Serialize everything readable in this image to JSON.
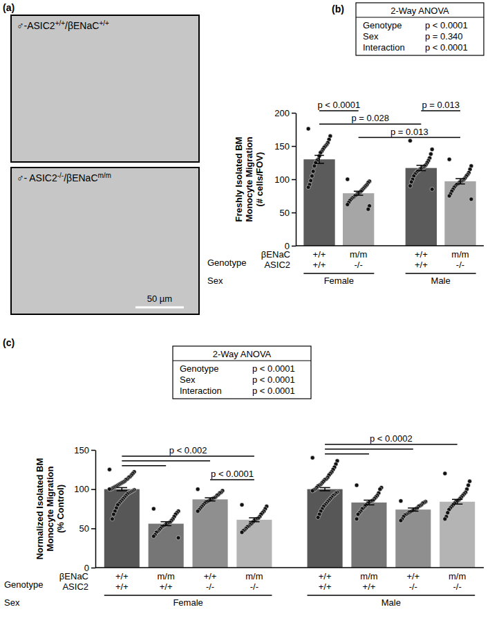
{
  "panel_a": {
    "letter": "(a)",
    "images": [
      {
        "label_parts": [
          {
            "text": "♂-ASIC2"
          },
          {
            "text": "+/+",
            "sup": true
          },
          {
            "text": "/βENaC"
          },
          {
            "text": "+/+",
            "sup": true
          }
        ]
      },
      {
        "label_parts": [
          {
            "text": "♂- ASIC2"
          },
          {
            "text": "-/-",
            "sup": true
          },
          {
            "text": "/βENaC"
          },
          {
            "text": "m/m",
            "sup": true
          }
        ],
        "scale_bar": "50 µm"
      }
    ]
  },
  "chart_data": [
    {
      "letter": "(b)",
      "type": "bar",
      "ylabel": [
        "Freshly Isolated BM",
        "Monocyte Migration",
        "(# cells/FOV)"
      ],
      "categories": [
        "+/+",
        "m/m",
        "+/+",
        "m/m"
      ],
      "categories_2": [
        "+/+",
        "-/-",
        "+/+",
        "-/-"
      ],
      "category_rows": [
        "βENaC",
        "ASIC2"
      ],
      "category_title": "Genotype",
      "groups": [
        "Female",
        "Male"
      ],
      "group_title": "Sex",
      "values": [
        130,
        79,
        117,
        97
      ],
      "errors": [
        6,
        3,
        4,
        4
      ],
      "points": [
        [
          176,
          165,
          160,
          155,
          152,
          150,
          148,
          145,
          142,
          140,
          135,
          130,
          128,
          125,
          120,
          112,
          105,
          98,
          92,
          88
        ],
        [
          100,
          97,
          95,
          92,
          90,
          88,
          86,
          84,
          82,
          80,
          79,
          78,
          76,
          75,
          73,
          72,
          70,
          68,
          65,
          62,
          60,
          55
        ],
        [
          158,
          145,
          138,
          132,
          128,
          125,
          122,
          120,
          118,
          117,
          116,
          115,
          113,
          112,
          110,
          108,
          105,
          100,
          96,
          90,
          85
        ],
        [
          130,
          120,
          115,
          110,
          107,
          105,
          102,
          100,
          98,
          97,
          96,
          95,
          93,
          92,
          90,
          88,
          85,
          82,
          78,
          75,
          70
        ]
      ],
      "colors": [
        "#5b5b5b",
        "#a6a6a6",
        "#5b5b5b",
        "#a6a6a6"
      ],
      "ylim": [
        0,
        200
      ],
      "yticks": [
        0,
        50,
        100,
        150,
        200
      ],
      "stats": {
        "title": "2-Way ANOVA",
        "rows": [
          [
            "Genotype",
            "p < 0.0001"
          ],
          [
            "Sex",
            "p = 0.340"
          ],
          [
            "Interaction",
            "p < 0.0001"
          ]
        ]
      },
      "comparisons": [
        {
          "from": 0,
          "to": 1,
          "y": 203,
          "label": "p < 0.0001"
        },
        {
          "from": 2,
          "to": 3,
          "y": 203,
          "label": "p = 0.013"
        },
        {
          "from": 0,
          "to": 2,
          "y": 183,
          "label": "p = 0.028"
        },
        {
          "from": 1,
          "to": 3,
          "y": 163,
          "label": "p = 0.013"
        }
      ]
    },
    {
      "letter": "(c)",
      "type": "bar",
      "ylabel": [
        "Normalized Isolated BM",
        "Monocyte Migration",
        "(% Control)"
      ],
      "categories": [
        "+/+",
        "m/m",
        "+/+",
        "m/m",
        "+/+",
        "m/m",
        "+/+",
        "m/m"
      ],
      "categories_2": [
        "+/+",
        "+/+",
        "-/-",
        "-/-",
        "+/+",
        "+/+",
        "-/-",
        "-/-"
      ],
      "category_rows": [
        "βENaC",
        "ASIC2"
      ],
      "category_title": "Genotype",
      "groups": [
        "Female",
        "Male"
      ],
      "group_title": "Sex",
      "values": [
        100,
        56,
        87,
        61,
        100,
        83,
        74,
        84
      ],
      "errors": [
        2,
        2.5,
        2,
        2.5,
        2,
        3,
        2,
        3
      ],
      "points": [
        [
          125,
          122,
          120,
          118,
          116,
          115,
          113,
          112,
          110,
          109,
          108,
          107,
          106,
          105,
          104,
          103,
          102,
          101,
          100,
          100,
          99,
          98,
          97,
          96,
          95,
          94,
          92,
          90,
          88,
          86,
          84,
          82,
          80,
          76,
          72,
          68,
          62
        ],
        [
          75,
          72,
          70,
          68,
          65,
          62,
          60,
          58,
          57,
          56,
          55,
          54,
          53,
          52,
          50,
          48,
          46,
          45,
          42,
          40,
          38
        ],
        [
          100,
          98,
          96,
          95,
          93,
          92,
          90,
          89,
          88,
          87,
          86,
          85,
          84,
          83,
          82,
          80,
          78,
          76,
          74,
          72
        ],
        [
          80,
          78,
          75,
          72,
          70,
          68,
          65,
          63,
          62,
          61,
          60,
          58,
          56,
          55,
          53,
          52,
          50,
          48,
          47,
          45
        ],
        [
          140,
          136,
          132,
          128,
          125,
          122,
          120,
          118,
          115,
          113,
          112,
          110,
          108,
          106,
          105,
          104,
          102,
          100,
          99,
          98,
          96,
          95,
          93,
          92,
          90,
          88,
          86,
          84,
          82,
          80,
          78,
          75,
          72,
          68,
          64
        ],
        [
          105,
          102,
          100,
          95,
          92,
          90,
          88,
          86,
          85,
          84,
          83,
          82,
          80,
          78,
          76,
          75,
          72,
          70,
          68,
          62
        ],
        [
          85,
          84,
          83,
          82,
          80,
          79,
          78,
          76,
          75,
          74,
          73,
          72,
          71,
          70,
          69,
          68,
          67,
          65,
          62,
          60
        ],
        [
          120,
          110,
          105,
          100,
          96,
          94,
          92,
          90,
          88,
          86,
          85,
          84,
          82,
          80,
          78,
          76,
          74,
          70,
          65,
          62
        ]
      ],
      "colors": [
        "#575757",
        "#767676",
        "#8f8f8f",
        "#b4b4b4",
        "#575757",
        "#767676",
        "#8f8f8f",
        "#b4b4b4"
      ],
      "ylim": [
        0,
        150
      ],
      "yticks": [
        0,
        50,
        100,
        150
      ],
      "stats": {
        "title": "2-Way ANOVA",
        "rows": [
          [
            "Genotype",
            "p < 0.0001"
          ],
          [
            "Sex",
            "p < 0.0001"
          ],
          [
            "Interaction",
            "p < 0.0001"
          ]
        ]
      },
      "comparisons": [
        {
          "from": 0,
          "to": 3,
          "y": 142,
          "label": "p < 0.002"
        },
        {
          "from": 0,
          "to": 2,
          "y": 136
        },
        {
          "from": 0,
          "to": 1,
          "y": 130
        },
        {
          "from": 2,
          "to": 3,
          "y": 112,
          "label": "p < 0.0001"
        },
        {
          "from": 4,
          "to": 7,
          "y": 157,
          "label": "p < 0.0002"
        },
        {
          "from": 4,
          "to": 6,
          "y": 151
        },
        {
          "from": 4,
          "to": 5,
          "y": 145
        }
      ]
    }
  ]
}
